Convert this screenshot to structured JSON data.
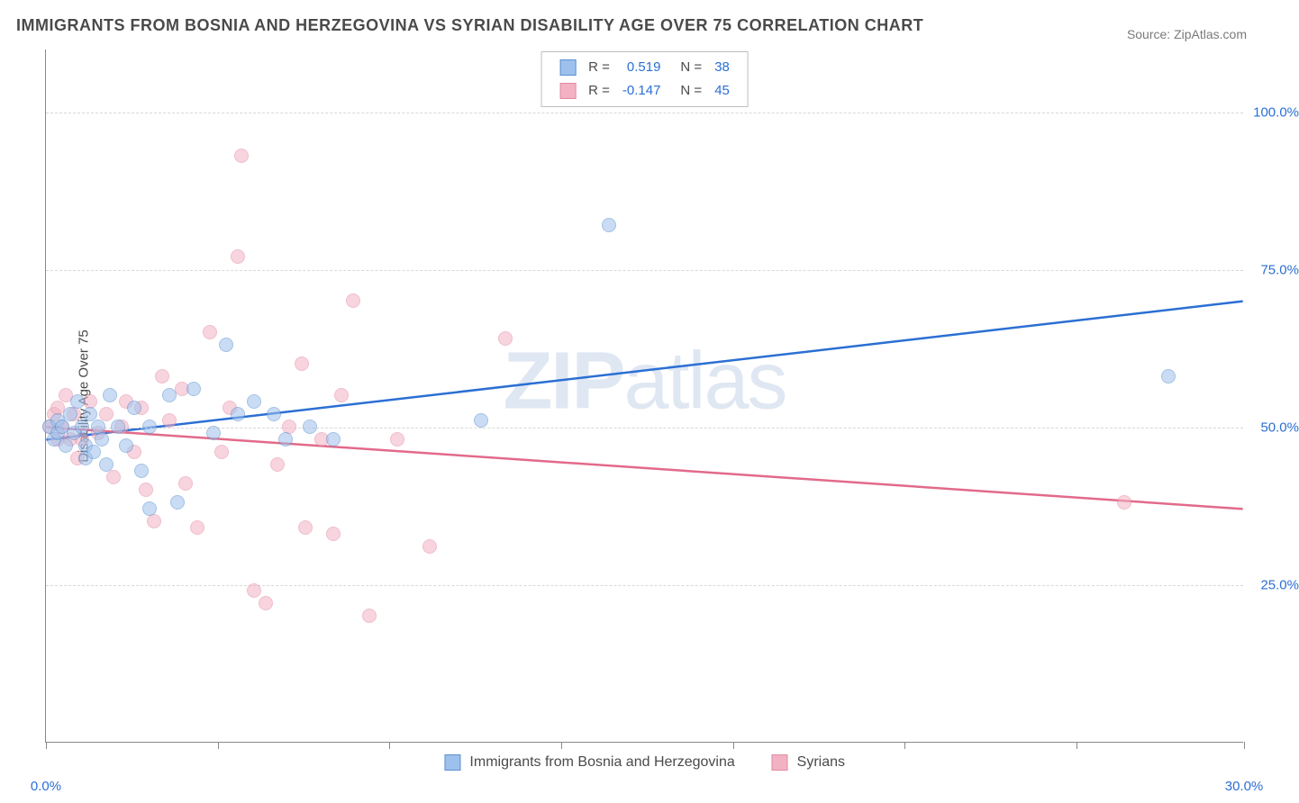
{
  "title": "IMMIGRANTS FROM BOSNIA AND HERZEGOVINA VS SYRIAN DISABILITY AGE OVER 75 CORRELATION CHART",
  "source": "Source: ZipAtlas.com",
  "y_axis_label": "Disability Age Over 75",
  "watermark_bold": "ZIP",
  "watermark_rest": "atlas",
  "chart": {
    "type": "scatter",
    "xlim": [
      0,
      30
    ],
    "ylim": [
      0,
      110
    ],
    "x_ticks": [
      0,
      4.3,
      8.6,
      12.9,
      17.2,
      21.5,
      25.8,
      30
    ],
    "x_tick_labels": {
      "0": "0.0%",
      "30": "30.0%"
    },
    "y_gridlines": [
      25,
      50,
      75,
      100
    ],
    "y_tick_labels": {
      "25": "25.0%",
      "50": "50.0%",
      "75": "75.0%",
      "100": "100.0%"
    },
    "background_color": "#ffffff",
    "grid_color": "#d8d8d8",
    "axis_color": "#888888",
    "label_color": "#2b6fd4",
    "marker_radius": 8,
    "series": [
      {
        "name": "Immigrants from Bosnia and Herzegovina",
        "fill": "#9dc1ec",
        "stroke": "#5a8fd0",
        "fill_opacity": 0.55,
        "line_color": "#2b6fd4",
        "line_width": 2.5,
        "R": "0.519",
        "N": "38",
        "trend": {
          "x1": 0,
          "y1": 48,
          "x2": 30,
          "y2": 70
        },
        "points": [
          [
            0.1,
            50
          ],
          [
            0.2,
            48
          ],
          [
            0.3,
            49
          ],
          [
            0.3,
            51
          ],
          [
            0.4,
            50
          ],
          [
            0.5,
            47
          ],
          [
            0.6,
            52
          ],
          [
            0.7,
            49
          ],
          [
            0.8,
            54
          ],
          [
            0.9,
            50
          ],
          [
            1.0,
            47
          ],
          [
            1.0,
            45
          ],
          [
            1.1,
            52
          ],
          [
            1.2,
            46
          ],
          [
            1.3,
            50
          ],
          [
            1.4,
            48
          ],
          [
            1.5,
            44
          ],
          [
            1.6,
            55
          ],
          [
            1.8,
            50
          ],
          [
            2.0,
            47
          ],
          [
            2.2,
            53
          ],
          [
            2.4,
            43
          ],
          [
            2.6,
            50
          ],
          [
            2.6,
            37
          ],
          [
            3.1,
            55
          ],
          [
            3.3,
            38
          ],
          [
            3.7,
            56
          ],
          [
            4.2,
            49
          ],
          [
            4.5,
            63
          ],
          [
            4.8,
            52
          ],
          [
            5.2,
            54
          ],
          [
            5.7,
            52
          ],
          [
            6.0,
            48
          ],
          [
            6.6,
            50
          ],
          [
            7.2,
            48
          ],
          [
            10.9,
            51
          ],
          [
            14.1,
            82
          ],
          [
            28.1,
            58
          ]
        ]
      },
      {
        "name": "Syrians",
        "fill": "#f2b2c4",
        "stroke": "#e28aa2",
        "fill_opacity": 0.55,
        "line_color": "#e26a8a",
        "line_width": 2.5,
        "R": "-0.147",
        "N": "45",
        "trend": {
          "x1": 0,
          "y1": 50,
          "x2": 30,
          "y2": 37
        },
        "points": [
          [
            0.1,
            50
          ],
          [
            0.2,
            52
          ],
          [
            0.3,
            48
          ],
          [
            0.3,
            53
          ],
          [
            0.4,
            50
          ],
          [
            0.5,
            55
          ],
          [
            0.6,
            48
          ],
          [
            0.7,
            52
          ],
          [
            0.8,
            45
          ],
          [
            0.9,
            48
          ],
          [
            1.1,
            54
          ],
          [
            1.3,
            49
          ],
          [
            1.5,
            52
          ],
          [
            1.7,
            42
          ],
          [
            1.9,
            50
          ],
          [
            2.0,
            54
          ],
          [
            2.2,
            46
          ],
          [
            2.4,
            53
          ],
          [
            2.5,
            40
          ],
          [
            2.7,
            35
          ],
          [
            2.9,
            58
          ],
          [
            3.1,
            51
          ],
          [
            3.4,
            56
          ],
          [
            3.5,
            41
          ],
          [
            3.8,
            34
          ],
          [
            4.1,
            65
          ],
          [
            4.4,
            46
          ],
          [
            4.6,
            53
          ],
          [
            4.8,
            77
          ],
          [
            4.9,
            93
          ],
          [
            5.2,
            24
          ],
          [
            5.5,
            22
          ],
          [
            5.8,
            44
          ],
          [
            6.1,
            50
          ],
          [
            6.4,
            60
          ],
          [
            6.5,
            34
          ],
          [
            6.9,
            48
          ],
          [
            7.2,
            33
          ],
          [
            7.4,
            55
          ],
          [
            7.7,
            70
          ],
          [
            8.1,
            20
          ],
          [
            8.8,
            48
          ],
          [
            9.6,
            31
          ],
          [
            11.5,
            64
          ],
          [
            27.0,
            38
          ]
        ]
      }
    ],
    "legend_labels": {
      "R_prefix": "R  =",
      "N_prefix": "N  ="
    }
  }
}
